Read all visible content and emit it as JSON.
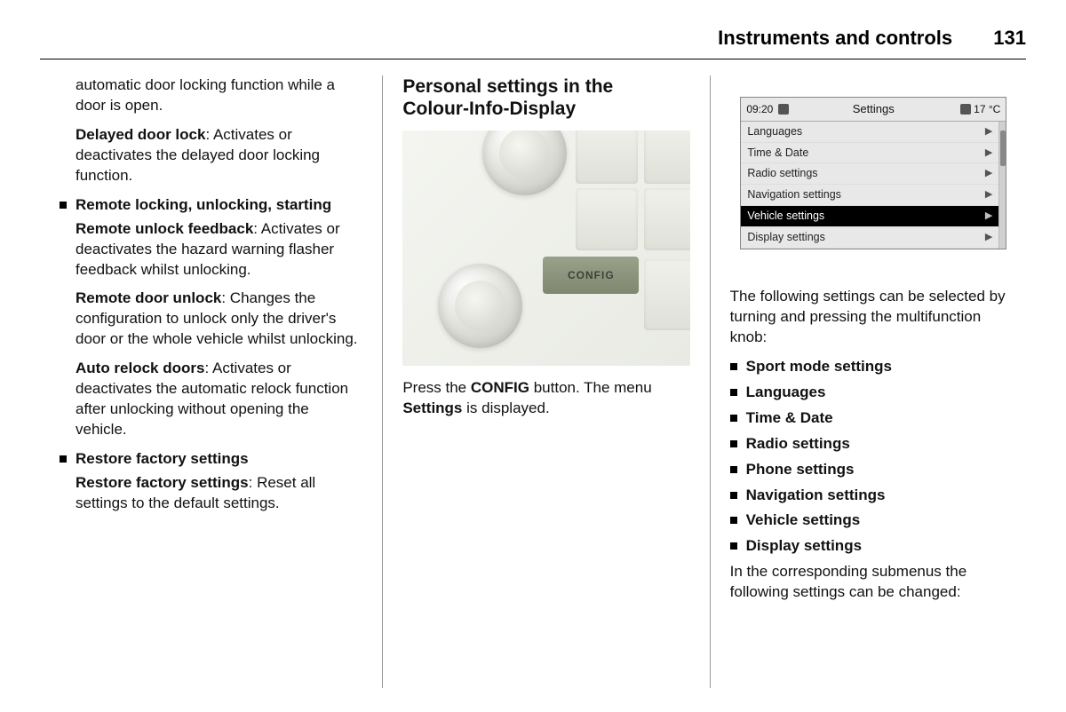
{
  "header": {
    "section": "Instruments and controls",
    "page": "131"
  },
  "col1": {
    "intro": "automatic door locking function while a door is open.",
    "delayed_bold": "Delayed door lock",
    "delayed_rest": ": Activates or deactivates the delayed door locking function.",
    "remote_heading": "Remote locking, unlocking, starting",
    "ruf_bold": "Remote unlock feedback",
    "ruf_rest": ": Activates or deactivates the hazard warning flasher feedback whilst unlocking.",
    "rdu_bold": "Remote door unlock",
    "rdu_rest": ": Changes the configuration to unlock only the driver's door or the whole vehicle whilst unlocking.",
    "ard_bold": "Auto relock doors",
    "ard_rest": ": Activates or deactivates the automatic relock function after unlocking without opening the vehicle.",
    "restore_heading": "Restore factory settings",
    "restore_bold": "Restore factory settings",
    "restore_rest": ": Reset all settings to the default settings."
  },
  "col2": {
    "heading_l1": "Personal settings in the",
    "heading_l2": "Colour-Info-Display",
    "config_label": "CONFIG",
    "caption_pre": "Press the ",
    "caption_bold": "CONFIG",
    "caption_mid": " button. The menu ",
    "caption_bold2": "Settings",
    "caption_post": " is displayed."
  },
  "lcd": {
    "time": "09:20",
    "title": "Settings",
    "temp": "17 °C",
    "items": [
      {
        "label": "Languages",
        "selected": false
      },
      {
        "label": "Time & Date",
        "selected": false
      },
      {
        "label": "Radio settings",
        "selected": false
      },
      {
        "label": "Navigation settings",
        "selected": false
      },
      {
        "label": "Vehicle settings",
        "selected": true
      },
      {
        "label": "Display settings",
        "selected": false
      }
    ]
  },
  "col3": {
    "lead": "The following settings can be selected by turning and pressing the multifunction knob:",
    "bullets": [
      "Sport mode settings",
      "Languages",
      "Time & Date",
      "Radio settings",
      "Phone settings",
      "Navigation settings",
      "Vehicle settings",
      "Display settings"
    ],
    "tail": "In the corresponding submenus the following settings can be changed:"
  }
}
